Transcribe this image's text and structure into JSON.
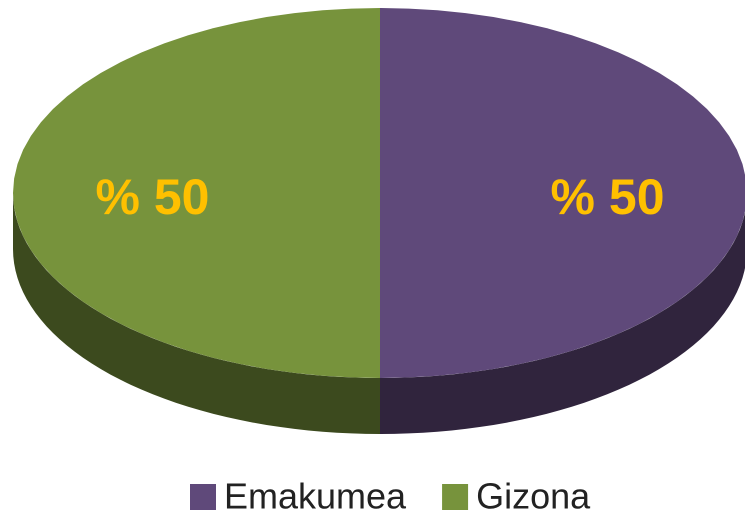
{
  "chart_data": {
    "type": "pie",
    "categories": [
      "Emakumea",
      "Gizona"
    ],
    "values": [
      50,
      50
    ],
    "value_labels": [
      "% 50",
      "% 50"
    ],
    "colors": [
      "#5f497a",
      "#77933c"
    ],
    "legend": "bottom"
  }
}
